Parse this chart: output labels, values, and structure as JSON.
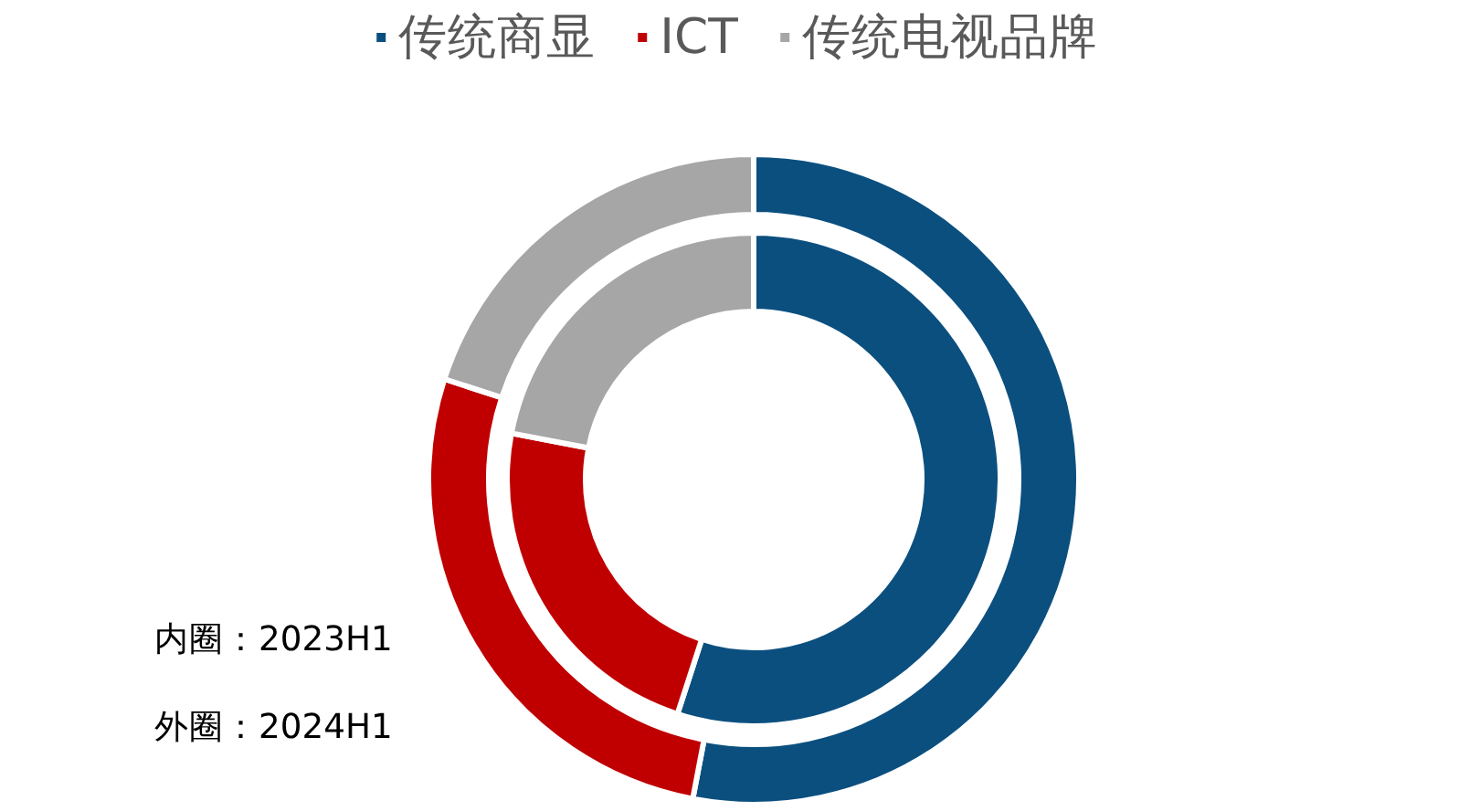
{
  "chart_data": {
    "type": "donut",
    "categories": [
      "传统商显",
      "ICT",
      "传统电视品牌"
    ],
    "colors": [
      "#0b4f7f",
      "#c00000",
      "#a6a6a6"
    ],
    "series": [
      {
        "values": [
          55,
          23,
          22
        ]
      },
      {
        "values": [
          53,
          27,
          20
        ]
      }
    ],
    "legend": "top",
    "annotations": [
      "内圈：2023H1",
      "外圈：2024H1"
    ]
  }
}
